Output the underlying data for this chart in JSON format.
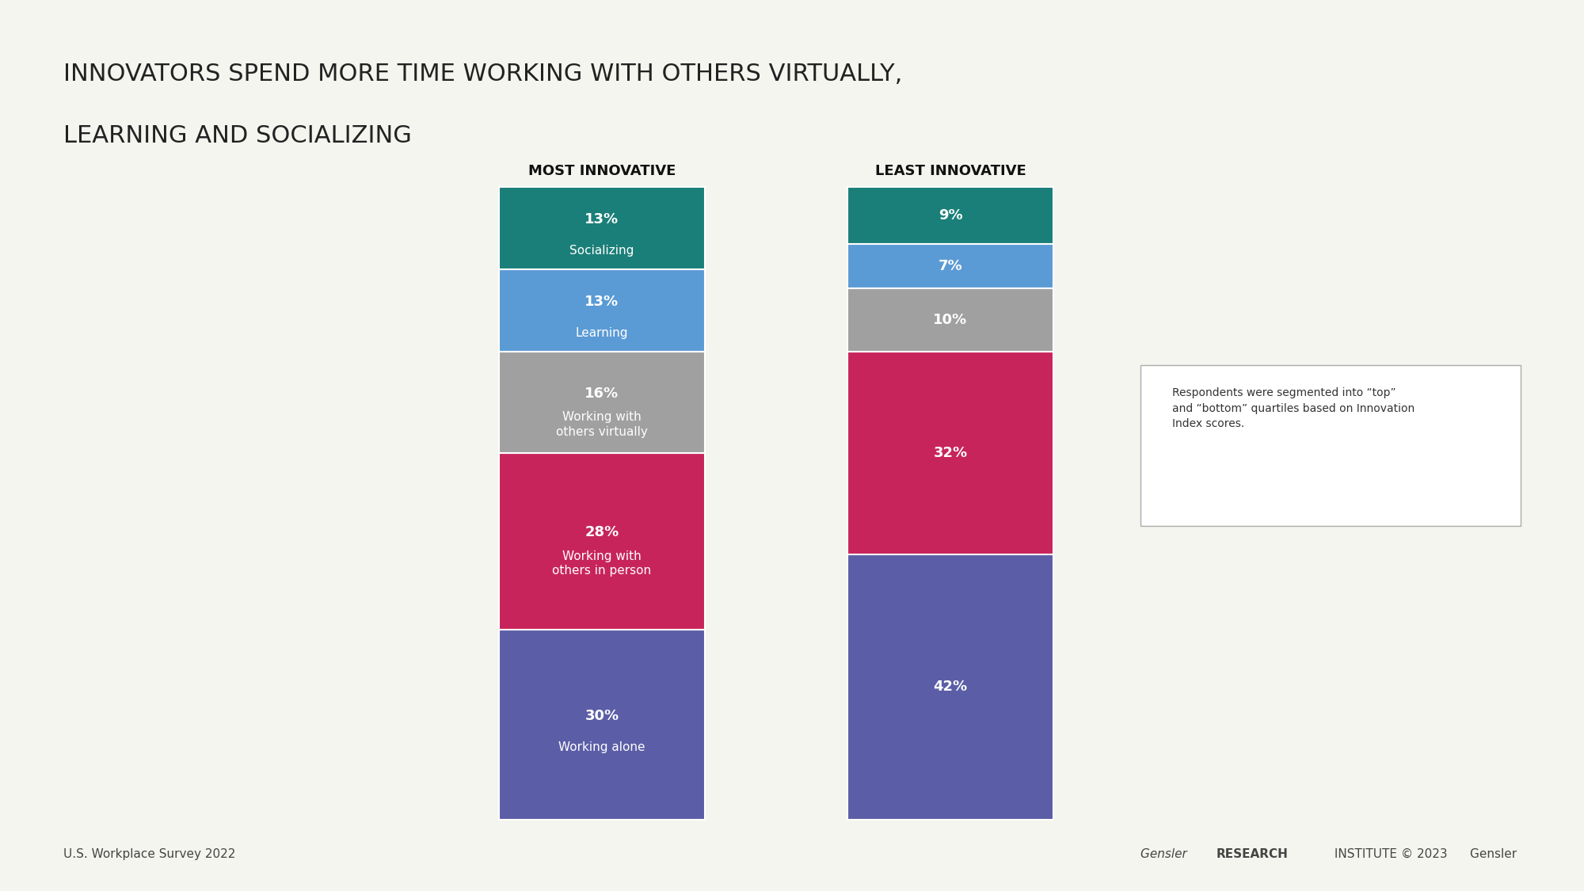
{
  "title_line1": "INNOVATORS SPEND MORE TIME WORKING WITH OTHERS VIRTUALLY,",
  "title_line2": "LEARNING AND SOCIALIZING",
  "col1_label": "MOST INNOVATIVE",
  "col2_label": "LEAST INNOVATIVE",
  "categories": [
    "Working alone",
    "Working with\nothers in person",
    "Working with\nothers virtually",
    "Learning",
    "Socializing"
  ],
  "categories_col1": [
    "30%\nWorking alone",
    "28%\nWorking with\nothers in person",
    "16%\nWorking with\nothers virtually",
    "13%\nLearning",
    "13%\nSocializing"
  ],
  "values_col1": [
    30,
    28,
    16,
    13,
    13
  ],
  "values_col2": [
    42,
    32,
    10,
    7,
    9
  ],
  "labels_col1": [
    "30%",
    "28%",
    "16%",
    "13%",
    "13%"
  ],
  "sublabels_col1": [
    "Working alone",
    "Working with\nothers in person",
    "Working with\nothers virtually",
    "Learning",
    "Socializing"
  ],
  "labels_col2": [
    "42%",
    "32%",
    "10%",
    "7%",
    "9%"
  ],
  "colors": [
    "#5b5ea6",
    "#c8245c",
    "#a0a0a0",
    "#5b9bd5",
    "#1b7f79"
  ],
  "bg_color": "#f5f5f0",
  "bar_width": 0.35,
  "note_text": "Respondents were segmented into “top”\nand “bottom” quartiles based on Innovation\nIndex scores.",
  "footer_left": "U.S. Workplace Survey 2022",
  "footer_right_normal": "Gensler ",
  "footer_right_bold": "RESEARCH",
  "footer_right_end": " INSTITUTE © 2023"
}
